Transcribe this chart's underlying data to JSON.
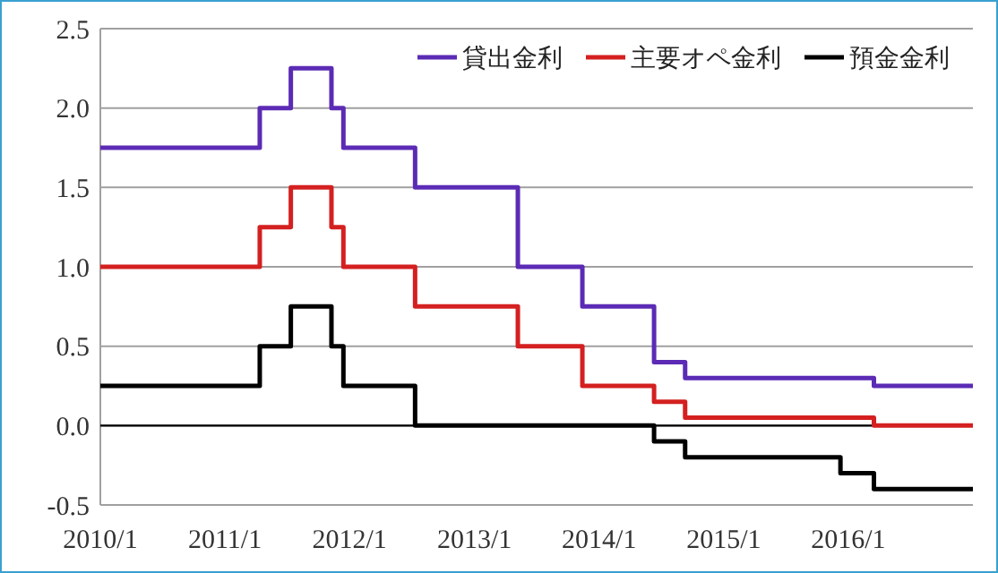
{
  "chart_data": {
    "type": "step",
    "x": [
      "2010-01-01",
      "2011-04-13",
      "2011-07-13",
      "2011-11-09",
      "2011-12-14",
      "2012-07-11",
      "2013-05-08",
      "2013-11-13",
      "2014-06-11",
      "2014-09-10",
      "2015-12-09",
      "2016-03-16",
      "2016-12-31"
    ],
    "series": [
      {
        "name": "貸出金利",
        "color": "#5b2bb5",
        "values": [
          1.75,
          2.0,
          2.25,
          2.0,
          1.75,
          1.5,
          1.0,
          0.75,
          0.4,
          0.3,
          0.3,
          0.25,
          0.25
        ]
      },
      {
        "name": "主要オペ金利",
        "color": "#d42020",
        "values": [
          1.0,
          1.25,
          1.5,
          1.25,
          1.0,
          0.75,
          0.5,
          0.25,
          0.15,
          0.05,
          0.05,
          0,
          0
        ]
      },
      {
        "name": "預金金利",
        "color": "#000000",
        "values": [
          0.25,
          0.5,
          0.75,
          0.5,
          0.25,
          0,
          0,
          0,
          -0.1,
          -0.2,
          -0.3,
          -0.4,
          -0.4
        ]
      }
    ],
    "xlim": [
      "2010-01-01",
      "2016-12-31"
    ],
    "xticks": [
      {
        "value": "2010-01-01",
        "label": "2010/1"
      },
      {
        "value": "2011-01-01",
        "label": "2011/1"
      },
      {
        "value": "2012-01-01",
        "label": "2012/1"
      },
      {
        "value": "2013-01-01",
        "label": "2013/1"
      },
      {
        "value": "2014-01-01",
        "label": "2014/1"
      },
      {
        "value": "2015-01-01",
        "label": "2015/1"
      },
      {
        "value": "2016-01-01",
        "label": "2016/1"
      }
    ],
    "ylim": [
      -0.5,
      2.5
    ],
    "yticks": [
      {
        "value": -0.5,
        "label": "-0.5"
      },
      {
        "value": 0,
        "label": "0.0"
      },
      {
        "value": 0.5,
        "label": "0.5"
      },
      {
        "value": 1,
        "label": "1.0"
      },
      {
        "value": 1.5,
        "label": "1.5"
      },
      {
        "value": 2,
        "label": "2.0"
      },
      {
        "value": 2.5,
        "label": "2.5"
      }
    ],
    "ref_lines": [
      {
        "axis": "y",
        "value": 0,
        "color": "#000000"
      }
    ],
    "grid": "y",
    "legend": "top right"
  }
}
